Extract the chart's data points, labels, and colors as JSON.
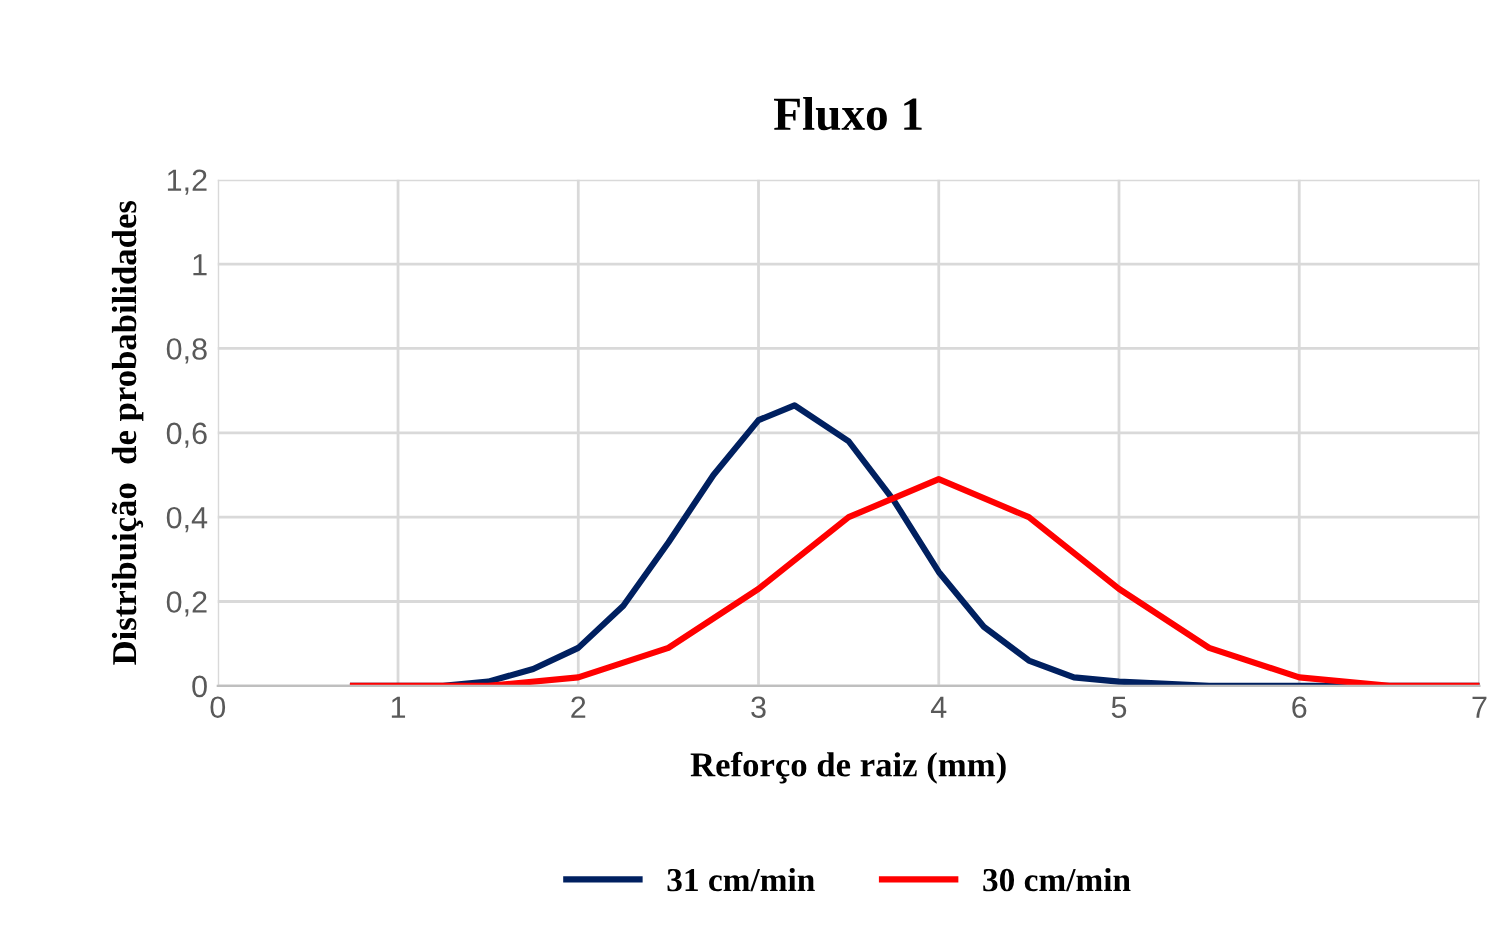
{
  "chart_data": {
    "type": "line",
    "title": "Fluxo 1",
    "xlabel": "Reforço de raiz (mm)",
    "ylabel": "Distribuição  de probabilidades",
    "xlim": [
      0,
      7
    ],
    "xticks": [
      0,
      1,
      2,
      3,
      4,
      5,
      6,
      7
    ],
    "ylim": [
      0,
      1.2
    ],
    "yticks": [
      {
        "value": 0,
        "label": "0"
      },
      {
        "value": 0.2,
        "label": "0,2"
      },
      {
        "value": 0.4,
        "label": "0,4"
      },
      {
        "value": 0.6,
        "label": "0,6"
      },
      {
        "value": 0.8,
        "label": "0,8"
      },
      {
        "value": 1,
        "label": "1"
      },
      {
        "value": 1.2,
        "label": "1,2"
      }
    ],
    "grid": true,
    "legend": "bottom",
    "marker": "none",
    "line_style": "solid",
    "series": [
      {
        "name": "31 cm/min",
        "color": "#002060",
        "x": [
          0.75,
          1.0,
          1.25,
          1.5,
          1.75,
          2.0,
          2.25,
          2.5,
          2.75,
          3.0,
          3.2,
          3.5,
          3.75,
          4.0,
          4.25,
          4.5,
          4.75,
          5.0,
          5.5,
          6.0,
          7.0
        ],
        "values": [
          0,
          0,
          0,
          0.01,
          0.04,
          0.09,
          0.19,
          0.34,
          0.5,
          0.63,
          0.665,
          0.58,
          0.44,
          0.27,
          0.14,
          0.06,
          0.02,
          0.01,
          0,
          0,
          0
        ]
      },
      {
        "name": "30 cm/min",
        "color": "#ff0000",
        "x": [
          0.75,
          1.0,
          1.5,
          2.0,
          2.5,
          3.0,
          3.5,
          4.0,
          4.5,
          5.0,
          5.5,
          6.0,
          6.5,
          7.0
        ],
        "values": [
          0,
          0,
          0,
          0.02,
          0.09,
          0.23,
          0.4,
          0.49,
          0.4,
          0.23,
          0.09,
          0.02,
          0,
          0
        ]
      }
    ]
  }
}
